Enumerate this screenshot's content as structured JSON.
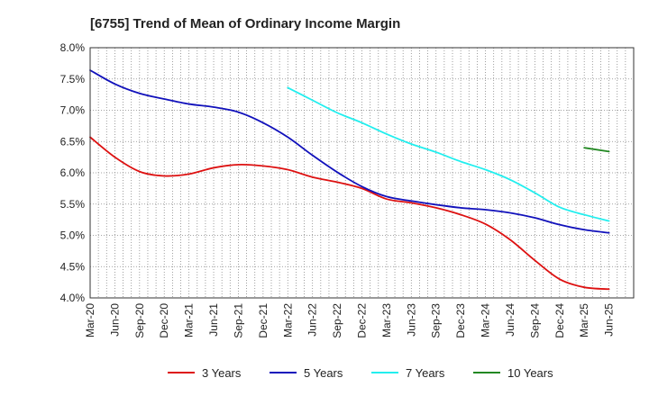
{
  "chart_data": {
    "type": "line",
    "title": "[6755]  Trend of Mean of Ordinary Income Margin",
    "xlabel": "",
    "ylabel": "",
    "x_ticks": [
      "Mar-20",
      "Jun-20",
      "Sep-20",
      "Dec-20",
      "Mar-21",
      "Jun-21",
      "Sep-21",
      "Dec-21",
      "Mar-22",
      "Jun-22",
      "Sep-22",
      "Dec-22",
      "Mar-23",
      "Jun-23",
      "Sep-23",
      "Dec-23",
      "Mar-24",
      "Jun-24",
      "Sep-24",
      "Dec-24",
      "Mar-25",
      "Jun-25"
    ],
    "y_ticks": [
      "4.0%",
      "4.5%",
      "5.0%",
      "5.5%",
      "6.0%",
      "6.5%",
      "7.0%",
      "7.5%",
      "8.0%"
    ],
    "ylim": [
      4.0,
      8.0
    ],
    "grid": true,
    "legend_position": "bottom",
    "series": [
      {
        "name": "3 Years",
        "color": "#dd1111",
        "points": [
          [
            "Mar-20",
            6.57
          ],
          [
            "Jun-20",
            6.25
          ],
          [
            "Sep-20",
            6.02
          ],
          [
            "Dec-20",
            5.95
          ],
          [
            "Mar-21",
            5.98
          ],
          [
            "Jun-21",
            6.08
          ],
          [
            "Sep-21",
            6.13
          ],
          [
            "Dec-21",
            6.11
          ],
          [
            "Mar-22",
            6.05
          ],
          [
            "Jun-22",
            5.93
          ],
          [
            "Sep-22",
            5.85
          ],
          [
            "Dec-22",
            5.75
          ],
          [
            "Mar-23",
            5.58
          ],
          [
            "Jun-23",
            5.52
          ],
          [
            "Sep-23",
            5.44
          ],
          [
            "Dec-23",
            5.33
          ],
          [
            "Mar-24",
            5.18
          ],
          [
            "Jun-24",
            4.93
          ],
          [
            "Sep-24",
            4.6
          ],
          [
            "Dec-24",
            4.3
          ],
          [
            "Mar-25",
            4.17
          ],
          [
            "Jun-25",
            4.14
          ]
        ]
      },
      {
        "name": "5 Years",
        "color": "#1111bb",
        "points": [
          [
            "Mar-20",
            7.64
          ],
          [
            "Jun-20",
            7.42
          ],
          [
            "Sep-20",
            7.27
          ],
          [
            "Dec-20",
            7.18
          ],
          [
            "Mar-21",
            7.1
          ],
          [
            "Jun-21",
            7.05
          ],
          [
            "Sep-21",
            6.97
          ],
          [
            "Dec-21",
            6.8
          ],
          [
            "Mar-22",
            6.57
          ],
          [
            "Jun-22",
            6.28
          ],
          [
            "Sep-22",
            6.01
          ],
          [
            "Dec-22",
            5.78
          ],
          [
            "Mar-23",
            5.62
          ],
          [
            "Jun-23",
            5.55
          ],
          [
            "Sep-23",
            5.49
          ],
          [
            "Dec-23",
            5.44
          ],
          [
            "Mar-24",
            5.41
          ],
          [
            "Jun-24",
            5.36
          ],
          [
            "Sep-24",
            5.28
          ],
          [
            "Dec-24",
            5.17
          ],
          [
            "Mar-25",
            5.09
          ],
          [
            "Jun-25",
            5.04
          ]
        ]
      },
      {
        "name": "7 Years",
        "color": "#22eeee",
        "points": [
          [
            "Mar-22",
            7.36
          ],
          [
            "Jun-22",
            7.16
          ],
          [
            "Sep-22",
            6.96
          ],
          [
            "Dec-22",
            6.8
          ],
          [
            "Mar-23",
            6.62
          ],
          [
            "Jun-23",
            6.46
          ],
          [
            "Sep-23",
            6.33
          ],
          [
            "Dec-23",
            6.18
          ],
          [
            "Mar-24",
            6.05
          ],
          [
            "Jun-24",
            5.89
          ],
          [
            "Sep-24",
            5.68
          ],
          [
            "Dec-24",
            5.45
          ],
          [
            "Mar-25",
            5.33
          ],
          [
            "Jun-25",
            5.23
          ]
        ]
      },
      {
        "name": "10 Years",
        "color": "#228822",
        "points": [
          [
            "Mar-25",
            6.4
          ],
          [
            "Jun-25",
            6.34
          ]
        ]
      }
    ]
  }
}
